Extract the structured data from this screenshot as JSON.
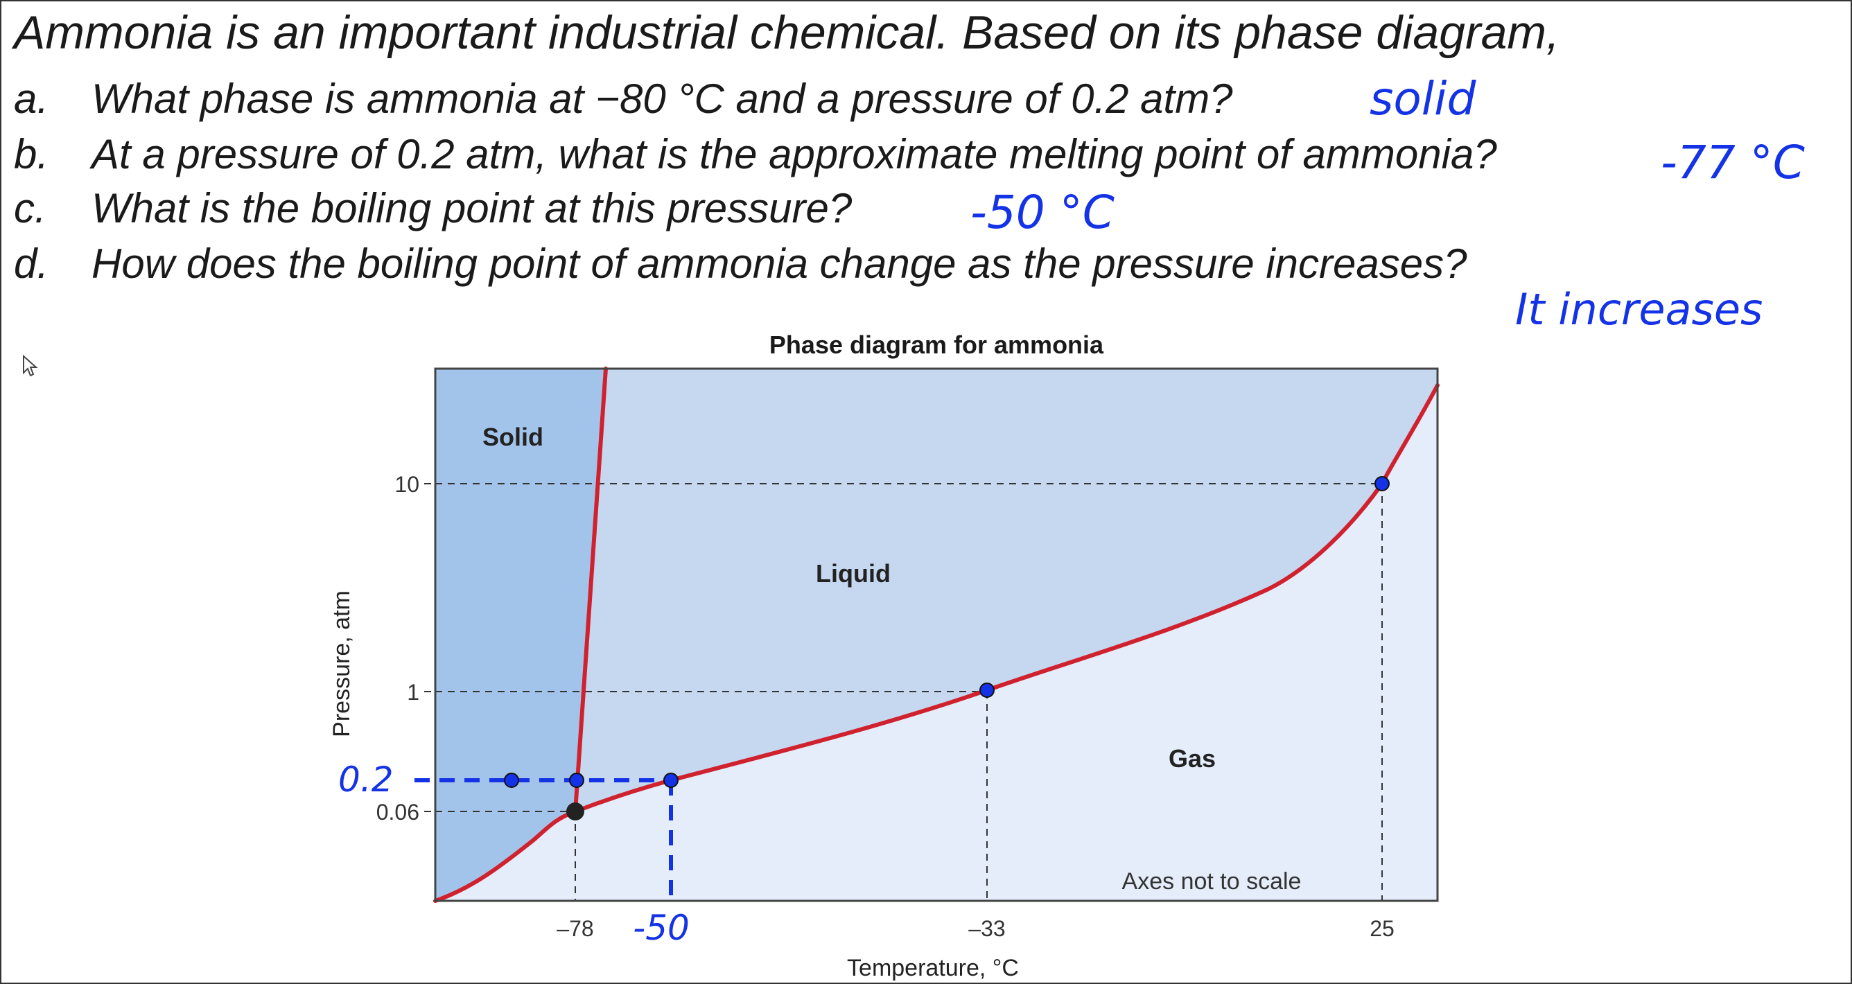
{
  "intro": "Ammonia is an important industrial chemical.  Based on its phase diagram,",
  "questions": [
    {
      "label": "a.",
      "text": "What phase is ammonia at −80 °C and a pressure of 0.2 atm?"
    },
    {
      "label": "b.",
      "text": "At a pressure of 0.2 atm, what is the approximate melting point of ammonia?"
    },
    {
      "label": "c.",
      "text": "What is the boiling point at this pressure?"
    },
    {
      "label": "d.",
      "text": "How does the boiling point of ammonia change as the pressure increases?"
    }
  ],
  "answers": {
    "a": "solid",
    "b": "-77 °C",
    "c": "-50 °C",
    "d": "It increases"
  },
  "chart_data": {
    "type": "diagram",
    "title": "Phase diagram for ammonia",
    "xlabel": "Temperature, °C",
    "ylabel": "Pressure, atm",
    "x_ticks": [
      "–78",
      "–33",
      "25"
    ],
    "y_ticks": [
      "10",
      "1",
      "0.06"
    ],
    "regions": [
      "Solid",
      "Liquid",
      "Gas"
    ],
    "note": "Axes not to scale",
    "points": [
      {
        "T": -78,
        "P": 0.06,
        "kind": "triple point"
      },
      {
        "T": -33,
        "P": 1,
        "kind": "normal boiling point"
      },
      {
        "T": 25,
        "P": 10,
        "kind": "boiling point"
      }
    ],
    "annotations": {
      "pressure_label": "0.2",
      "temperature_label": "-50",
      "answer_points": [
        {
          "T": -80,
          "P": 0.2
        },
        {
          "T": -77,
          "P": 0.2
        },
        {
          "T": -50,
          "P": 0.2
        }
      ]
    },
    "colors": {
      "solid": "#a3c4ea",
      "liquid": "#c5d8f0",
      "gas": "#e4edf9",
      "curve": "#d0222e",
      "annotation": "#1432e6"
    }
  }
}
